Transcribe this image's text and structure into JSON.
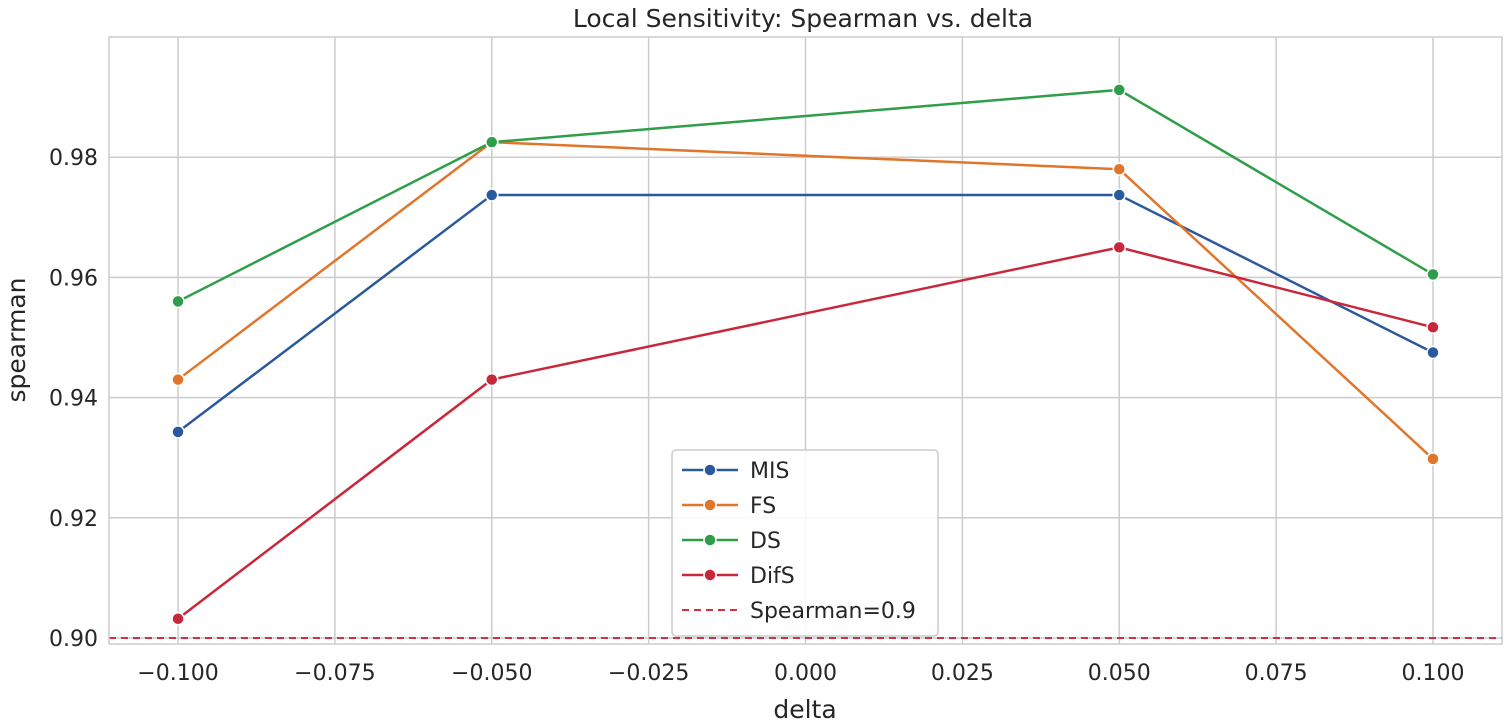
{
  "chart_data": {
    "type": "line",
    "title": "Local Sensitivity: Spearman vs. delta",
    "xlabel": "delta",
    "ylabel": "spearman",
    "x": [
      -0.1,
      -0.05,
      0.05,
      0.1
    ],
    "xlim": [
      -0.111,
      0.111
    ],
    "ylim": [
      0.899,
      1.0
    ],
    "xticks": [
      -0.1,
      -0.075,
      -0.05,
      -0.025,
      0.0,
      0.025,
      0.05,
      0.075,
      0.1
    ],
    "xtick_labels": [
      "−0.100",
      "−0.075",
      "−0.050",
      "−0.025",
      "0.000",
      "0.025",
      "0.050",
      "0.075",
      "0.100"
    ],
    "yticks": [
      0.9,
      0.92,
      0.94,
      0.96,
      0.98
    ],
    "ytick_labels": [
      "0.90",
      "0.92",
      "0.94",
      "0.96",
      "0.98"
    ],
    "grid": true,
    "legend_position": "bottom-center",
    "series": [
      {
        "name": "MIS",
        "color": "#2a5a9e",
        "values": [
          0.9343,
          0.9737,
          0.9737,
          0.9475
        ]
      },
      {
        "name": "FS",
        "color": "#e0762b",
        "values": [
          0.943,
          0.9825,
          0.978,
          0.9298
        ]
      },
      {
        "name": "DS",
        "color": "#2e9e4a",
        "values": [
          0.956,
          0.9825,
          0.9912,
          0.9605
        ]
      },
      {
        "name": "DifS",
        "color": "#c8283a",
        "values": [
          0.9032,
          0.943,
          0.965,
          0.9517
        ]
      }
    ],
    "reference_line": {
      "name": "Spearman=0.9",
      "value": 0.9,
      "color": "#d62f3f",
      "style": "dashed"
    }
  }
}
